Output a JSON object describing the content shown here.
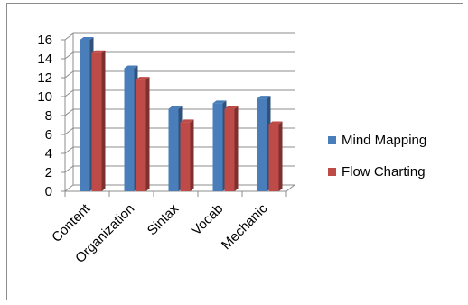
{
  "chart_data": {
    "type": "bar",
    "style": "3d-clustered-column",
    "categories": [
      "Content",
      "Organization",
      "Sintax",
      "Vocab",
      "Mechanic"
    ],
    "series": [
      {
        "name": "Mind Mapping",
        "values": [
          16,
          13,
          8.7,
          9.3,
          9.8
        ],
        "color": "#4a7ebb"
      },
      {
        "name": "Flow Charting",
        "values": [
          14.6,
          11.8,
          7.3,
          8.7,
          7.1
        ],
        "color": "#be4b48"
      }
    ],
    "ylim": [
      0,
      16
    ],
    "yticks": [
      "0",
      "2",
      "4",
      "6",
      "8",
      "10",
      "12",
      "14",
      "16"
    ],
    "grid": true,
    "legend_position": "right"
  }
}
